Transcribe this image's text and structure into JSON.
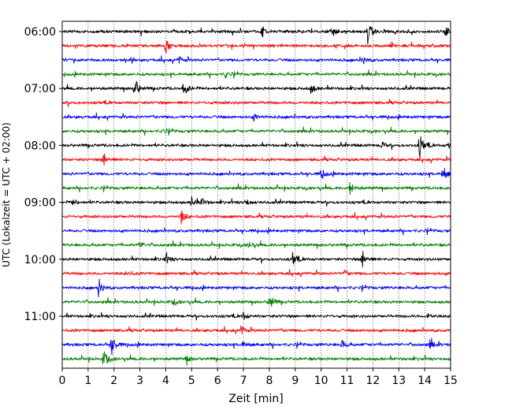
{
  "chart_data": {
    "type": "line",
    "xlabel": "Zeit  [min]",
    "ylabel": "UTC (Lokalzeit = UTC + 02:00)",
    "xlim": [
      0,
      15
    ],
    "x_ticks": [
      "0",
      "1",
      "2",
      "3",
      "4",
      "5",
      "6",
      "7",
      "8",
      "9",
      "10",
      "11",
      "12",
      "13",
      "14",
      "15"
    ],
    "y_ticks": [
      "06:00",
      "07:00",
      "08:00",
      "09:00",
      "10:00",
      "11:00"
    ],
    "grid": "vertical dotted",
    "colors": [
      "#000000",
      "#ff0000",
      "#0000ff",
      "#008000"
    ],
    "traces": [
      {
        "start": "06:00",
        "color": "#000000",
        "events": [
          [
            7.7,
            1.0
          ],
          [
            10.4,
            1.0
          ],
          [
            11.8,
            2.0
          ],
          [
            14.8,
            0.7
          ]
        ]
      },
      {
        "start": "06:15",
        "color": "#ff0000",
        "events": [
          [
            4.0,
            1.0
          ]
        ]
      },
      {
        "start": "06:30",
        "color": "#0000ff",
        "events": [
          [
            4.5,
            0.5
          ],
          [
            11.6,
            0.6
          ]
        ]
      },
      {
        "start": "06:45",
        "color": "#008000",
        "events": [
          [
            6.3,
            0.5
          ]
        ]
      },
      {
        "start": "07:00",
        "color": "#000000",
        "events": [
          [
            2.8,
            1.6
          ],
          [
            4.7,
            1.3
          ],
          [
            9.6,
            0.9
          ]
        ]
      },
      {
        "start": "07:15",
        "color": "#ff0000",
        "events": []
      },
      {
        "start": "07:30",
        "color": "#0000ff",
        "events": [
          [
            7.4,
            0.5
          ]
        ]
      },
      {
        "start": "07:45",
        "color": "#008000",
        "events": [
          [
            3.9,
            0.4
          ]
        ]
      },
      {
        "start": "08:00",
        "color": "#000000",
        "events": [
          [
            12.3,
            0.6
          ],
          [
            13.8,
            2.0
          ],
          [
            14.9,
            0.6
          ]
        ]
      },
      {
        "start": "08:15",
        "color": "#ff0000",
        "events": [
          [
            1.6,
            1.2
          ]
        ]
      },
      {
        "start": "08:30",
        "color": "#0000ff",
        "events": [
          [
            10.0,
            0.8
          ],
          [
            14.7,
            1.3
          ]
        ]
      },
      {
        "start": "08:45",
        "color": "#008000",
        "events": [
          [
            11.1,
            1.0
          ]
        ]
      },
      {
        "start": "09:00",
        "color": "#000000",
        "events": [
          [
            0.4,
            0.5
          ],
          [
            5.0,
            0.8
          ],
          [
            5.4,
            0.6
          ],
          [
            7.1,
            0.5
          ]
        ]
      },
      {
        "start": "09:15",
        "color": "#ff0000",
        "events": [
          [
            4.6,
            1.1
          ]
        ]
      },
      {
        "start": "09:30",
        "color": "#0000ff",
        "events": []
      },
      {
        "start": "09:45",
        "color": "#008000",
        "events": [
          [
            3.0,
            0.5
          ],
          [
            7.2,
            0.5
          ]
        ]
      },
      {
        "start": "10:00",
        "color": "#000000",
        "events": [
          [
            4.0,
            0.7
          ],
          [
            8.9,
            1.1
          ],
          [
            11.6,
            1.5
          ]
        ]
      },
      {
        "start": "10:15",
        "color": "#ff0000",
        "events": [
          [
            2.5,
            0.4
          ],
          [
            10.9,
            0.4
          ]
        ]
      },
      {
        "start": "10:30",
        "color": "#0000ff",
        "events": [
          [
            1.4,
            1.3
          ]
        ]
      },
      {
        "start": "10:45",
        "color": "#008000",
        "events": [
          [
            8.0,
            1.4
          ],
          [
            4.3,
            0.4
          ]
        ]
      },
      {
        "start": "11:00",
        "color": "#000000",
        "events": [
          [
            7.0,
            0.6
          ],
          [
            14.1,
            0.6
          ]
        ]
      },
      {
        "start": "11:15",
        "color": "#ff0000",
        "events": [
          [
            6.9,
            0.7
          ]
        ]
      },
      {
        "start": "11:30",
        "color": "#0000ff",
        "events": [
          [
            1.9,
            1.8
          ],
          [
            7.0,
            0.5
          ],
          [
            10.8,
            0.7
          ],
          [
            14.2,
            0.6
          ]
        ]
      },
      {
        "start": "11:45",
        "color": "#008000",
        "events": [
          [
            1.6,
            1.6
          ],
          [
            4.8,
            0.6
          ]
        ]
      }
    ]
  }
}
